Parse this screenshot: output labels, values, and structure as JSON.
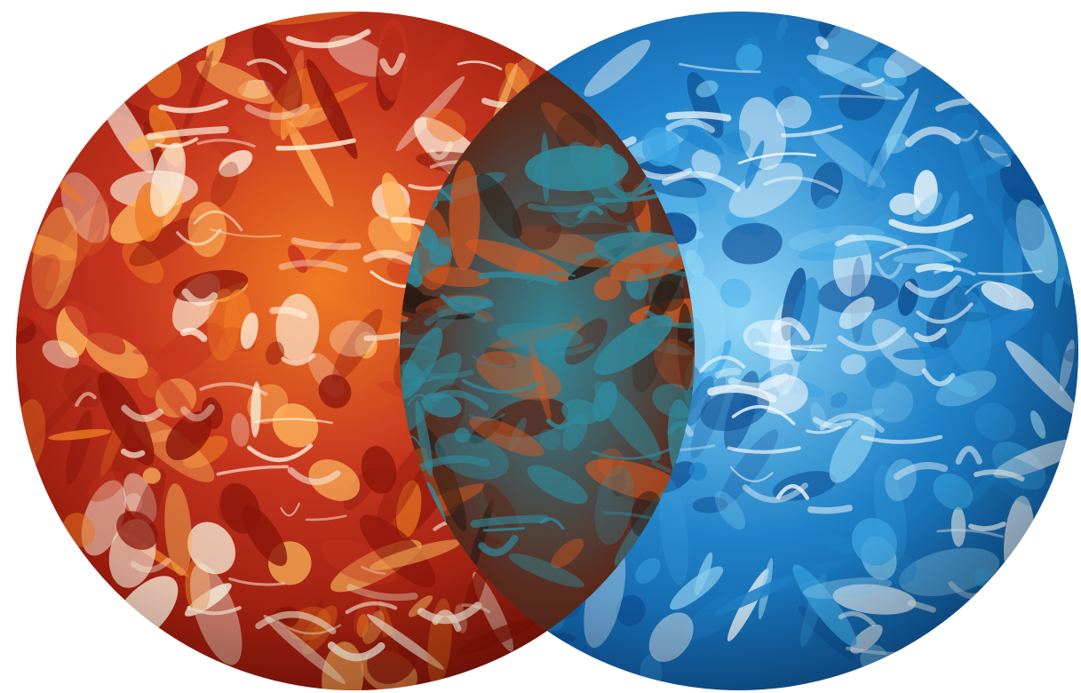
{
  "image": {
    "background": "#ffffff",
    "alt": "",
    "globes": [
      {
        "name": "red-earth-globe",
        "palette": {
          "base": "#c8321c",
          "deep": "#8e1408",
          "warm": "#f07a22",
          "glow": "#ffb35a",
          "cloud": "#fff3df"
        }
      },
      {
        "name": "blue-earth-globe",
        "palette": {
          "base": "#1f86cf",
          "deep": "#0b4f96",
          "warm": "#3aa8e6",
          "glow": "#8fd6f7",
          "cloud": "#f2fbff"
        }
      }
    ],
    "overlap": {
      "name": "overlap-lens",
      "palette": {
        "base": "#5a2a1c",
        "dark": "#2a1a14",
        "teal": "#2f8a9c",
        "orange": "#d9581f"
      }
    }
  }
}
